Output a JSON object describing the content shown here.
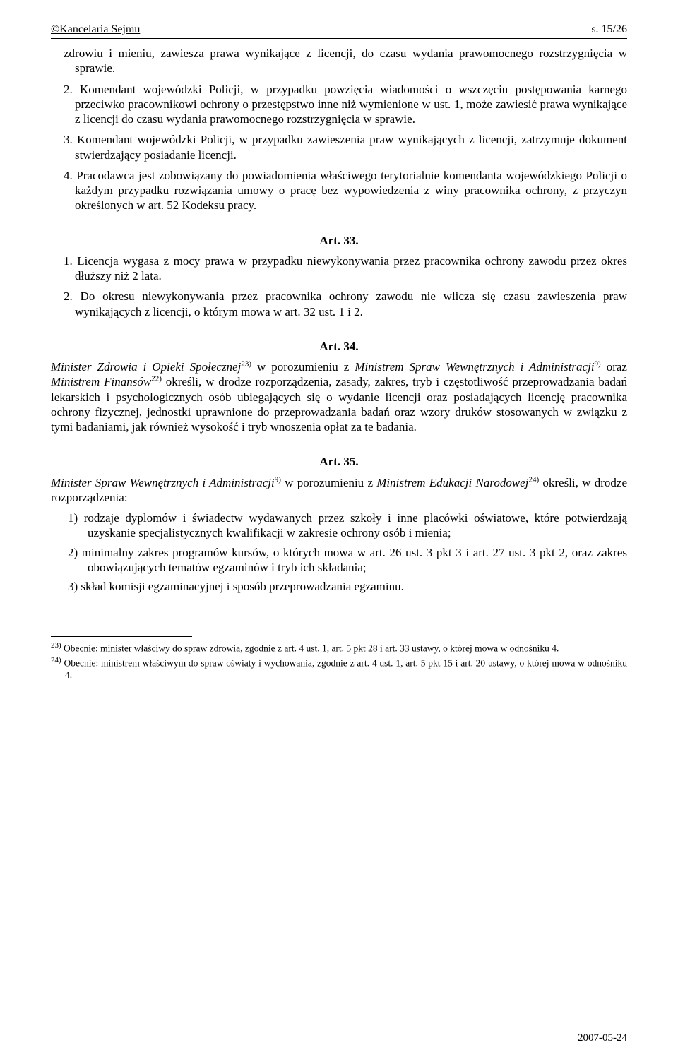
{
  "header": {
    "left": "©Kancelaria Sejmu",
    "right": "s. 15/26"
  },
  "intro_fragment": "zdrowiu i mieniu, zawiesza prawa wynikające z licencji, do czasu wydania prawomocnego rozstrzygnięcia w sprawie.",
  "p2": "2. Komendant wojewódzki Policji, w przypadku powzięcia wiadomości o wszczęciu postępowania karnego przeciwko pracownikowi ochrony o przestępstwo inne niż wymienione w ust. 1, może zawiesić prawa wynikające z licencji do czasu wydania prawomocnego rozstrzygnięcia w sprawie.",
  "p3": "3. Komendant wojewódzki Policji, w przypadku zawieszenia praw wynikających z licencji, zatrzymuje dokument stwierdzający posiadanie licencji.",
  "p4": "4. Pracodawca jest zobowiązany do powiadomienia właściwego terytorialnie komendanta wojewódzkiego Policji o każdym przypadku rozwiązania umowy o pracę bez wypowiedzenia z winy pracownika ochrony, z przyczyn określonych w art. 52 Kodeksu pracy.",
  "art33": {
    "heading": "Art. 33.",
    "p1": "1. Licencja wygasa z mocy prawa w przypadku niewykonywania przez pracownika ochrony zawodu przez okres dłuższy niż 2 lata.",
    "p2": "2. Do okresu niewykonywania przez pracownika ochrony zawodu nie wlicza się czasu zawieszenia praw wynikających z licencji, o którym mowa w art. 32 ust. 1 i 2."
  },
  "art34": {
    "heading": "Art. 34.",
    "body_pre_italic1": "Minister Zdrowia i Opieki Społecznej",
    "fn23": "23)",
    "body_mid1": " w porozumieniu z ",
    "italic1": "Ministrem Spraw Wewnętrznych i Administracji",
    "fn9": "9)",
    "body_mid2": " oraz ",
    "italic2": "Ministrem Finansów",
    "fn22": "22)",
    "body_tail": " określi, w drodze rozporządzenia, zasady, zakres, tryb i częstotliwość przeprowadzania badań lekarskich i psychologicznych osób ubiegających się o wydanie licencji oraz posiadających licencję pracownika ochrony fizycznej, jednostki uprawnione do przeprowadzania badań oraz wzory druków stosowanych w związku z tymi badaniami, jak również wysokość i tryb wnoszenia opłat za te badania."
  },
  "art35": {
    "heading": "Art. 35.",
    "intro_italic1": "Minister Spraw Wewnętrznych i Administracji",
    "fn9": "9)",
    "intro_mid": " w porozumieniu z ",
    "intro_italic2": "Ministrem Edukacji Narodowej",
    "fn24": "24)",
    "intro_tail": " określi, w drodze rozporządzenia:",
    "item1": "1) rodzaje dyplomów i świadectw wydawanych przez szkoły i inne placówki oświatowe, które potwierdzają uzyskanie specjalistycznych kwalifikacji w zakresie ochrony osób i mienia;",
    "item2": "2) minimalny zakres programów kursów, o których mowa w art. 26 ust. 3 pkt 3 i art. 27 ust. 3 pkt 2, oraz zakres obowiązujących tematów egzaminów i tryb ich składania;",
    "item3": "3) skład komisji egzaminacyjnej i sposób przeprowadzania egzaminu."
  },
  "footnotes": {
    "fn23_num": "23)",
    "fn23_text": " Obecnie: minister właściwy do spraw zdrowia, zgodnie z art. 4 ust. 1, art. 5 pkt 28 i art. 33 ustawy, o której mowa w odnośniku 4.",
    "fn24_num": "24)",
    "fn24_text": " Obecnie: ministrem właściwym do spraw oświaty i wychowania, zgodnie z art. 4 ust. 1, art. 5 pkt 15 i art. 20 ustawy, o której mowa w odnośniku 4."
  },
  "footer_date": "2007-05-24"
}
